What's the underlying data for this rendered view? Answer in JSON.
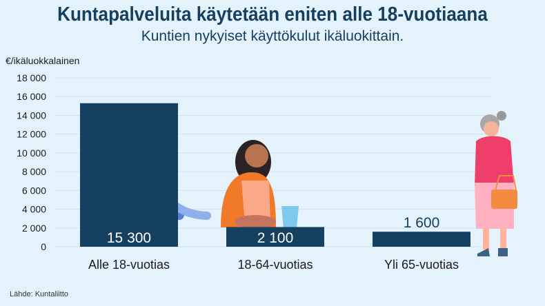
{
  "chart_data": {
    "type": "bar",
    "title": "Kuntapalveluita käytetään eniten alle 18-vuotiaana",
    "subtitle": "Kuntien nykyiset käyttökulut ikäluokittain.",
    "ylabel": "€/ikäluokkalainen",
    "xlabel": "",
    "ylim": [
      0,
      18000
    ],
    "yticks": [
      0,
      2000,
      4000,
      6000,
      8000,
      10000,
      12000,
      14000,
      16000,
      18000
    ],
    "ytick_labels": [
      "0",
      "2 000",
      "4 000",
      "6 000",
      "8 000",
      "10 000",
      "12 000",
      "14 000",
      "16 000",
      "18 000"
    ],
    "categories": [
      "Alle 18-vuotias",
      "18-64-vuotias",
      "Yli 65-vuotias"
    ],
    "values": [
      15300,
      2100,
      1600
    ],
    "data_labels": [
      "15 300",
      "2 100",
      "1 600"
    ],
    "grid": true,
    "bar_color": "#15405f",
    "source": "Lähde: Kuntaliitto"
  }
}
